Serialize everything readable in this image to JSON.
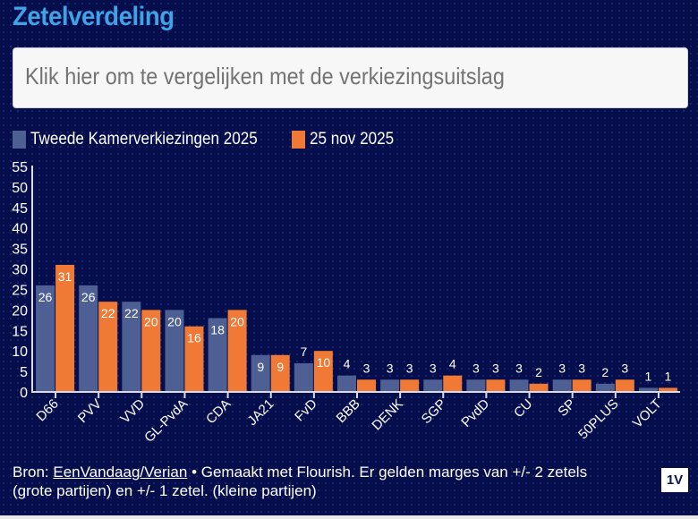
{
  "header": {
    "title": "Zetelverdeling"
  },
  "compare_button": {
    "label": "Klik hier om te vergelijken met de verkiezingsuitslag"
  },
  "legend": [
    {
      "label": "Tweede Kamerverkiezingen 2025",
      "color": "#4e5f94"
    },
    {
      "label": "25 nov 2025",
      "color": "#f07a35"
    }
  ],
  "chart_data": {
    "type": "bar",
    "title": "Zetelverdeling",
    "xlabel": "",
    "ylabel": "",
    "ylim": [
      0,
      55
    ],
    "yticks": [
      0,
      5,
      10,
      15,
      20,
      25,
      30,
      35,
      40,
      45,
      50,
      55
    ],
    "grid": false,
    "legend_position": "top-left",
    "categories": [
      "D66",
      "PVV",
      "VVD",
      "GL-PvdA",
      "CDA",
      "JA21",
      "FvD",
      "BBB",
      "DENK",
      "SGP",
      "PvdD",
      "CU",
      "SP",
      "50PLUS",
      "VOLT"
    ],
    "series": [
      {
        "name": "Tweede Kamerverkiezingen 2025",
        "color": "#4e5f94",
        "values": [
          26,
          26,
          22,
          20,
          18,
          9,
          7,
          4,
          3,
          3,
          3,
          3,
          3,
          2,
          1
        ]
      },
      {
        "name": "25 nov 2025",
        "color": "#f07a35",
        "values": [
          31,
          22,
          20,
          16,
          20,
          9,
          10,
          3,
          3,
          4,
          3,
          2,
          3,
          3,
          1
        ]
      }
    ]
  },
  "footer": {
    "source_prefix": "Bron: ",
    "source_link": "EenVandaag/Verian",
    "text": " • Gemaakt met Flourish. Er gelden marges van +/- 2 zetels (grote partijen) en +/- 1 zetel. (kleine partijen)"
  },
  "logo": {
    "text": "1V"
  }
}
